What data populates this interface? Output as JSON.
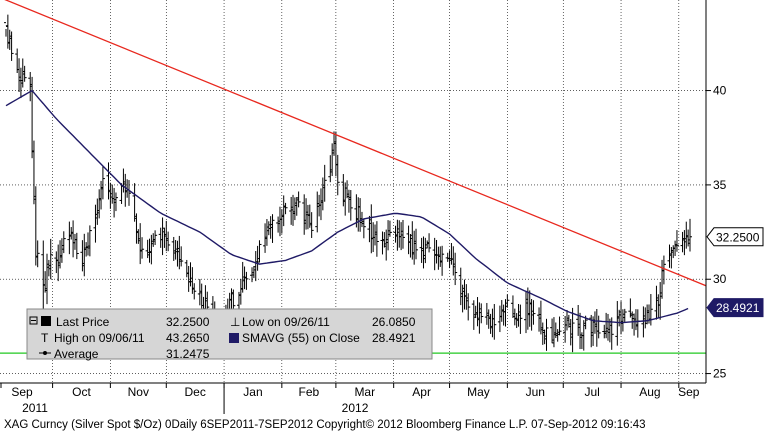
{
  "chart_data": {
    "type": "candlestick",
    "ticker": "XAG Curncy (Silver Spot $/Oz)",
    "period": "Daily 6SEP2011-7SEP2012",
    "copyright": "Copyright© 2012 Bloomberg Finance L.P.",
    "timestamp": "07-Sep-2012 09:16:43",
    "footer_text": "XAG Curncy (Silver Spot  $/Oz) 0Daily 6SEP2011-7SEP2012      Copyright© 2012 Bloomberg Finance L.P.      07-Sep-2012 09:16:43",
    "months": [
      "Sep",
      "Oct",
      "Nov",
      "Dec",
      "Jan",
      "Feb",
      "Mar",
      "Apr",
      "May",
      "Jun",
      "Jul",
      "Aug",
      "Sep"
    ],
    "years": [
      "2011",
      "2012"
    ],
    "yticks": [
      25,
      30,
      35,
      40
    ],
    "ylim": [
      24.5,
      44.8
    ],
    "badges": {
      "last": "32.2500",
      "sma": "28.4921"
    },
    "legend": {
      "last_price_label": "Last Price",
      "last_price_value": "32.2500",
      "high_label": "High on 09/06/11",
      "high_value": "43.2650",
      "average_label": "Average",
      "average_value": "31.2475",
      "low_label": "Low on 09/26/11",
      "low_value": "26.0850",
      "sma_label": "SMAVG (55) on Close",
      "sma_value": "28.4921"
    },
    "close_anchors": [
      [
        "2011-09-06",
        43.0
      ],
      [
        "2011-09-12",
        41.0
      ],
      [
        "2011-09-19",
        40.0
      ],
      [
        "2011-09-22",
        31.5
      ],
      [
        "2011-09-26",
        29.5
      ],
      [
        "2011-09-30",
        31.0
      ],
      [
        "2011-10-04",
        31.0
      ],
      [
        "2011-10-10",
        32.5
      ],
      [
        "2011-10-17",
        31.0
      ],
      [
        "2011-10-24",
        33.0
      ],
      [
        "2011-10-28",
        35.0
      ],
      [
        "2011-11-04",
        34.0
      ],
      [
        "2011-11-09",
        35.0
      ],
      [
        "2011-11-18",
        31.5
      ],
      [
        "2011-11-28",
        32.5
      ],
      [
        "2011-12-06",
        31.5
      ],
      [
        "2011-12-12",
        30.0
      ],
      [
        "2011-12-19",
        29.0
      ],
      [
        "2011-12-29",
        27.5
      ],
      [
        "2012-01-05",
        28.8
      ],
      [
        "2012-01-12",
        30.0
      ],
      [
        "2012-01-20",
        31.5
      ],
      [
        "2012-01-27",
        33.5
      ],
      [
        "2012-02-03",
        33.5
      ],
      [
        "2012-02-10",
        34.0
      ],
      [
        "2012-02-17",
        33.0
      ],
      [
        "2012-02-24",
        35.0
      ],
      [
        "2012-02-29",
        37.0
      ],
      [
        "2012-03-02",
        35.0
      ],
      [
        "2012-03-09",
        34.0
      ],
      [
        "2012-03-16",
        33.0
      ],
      [
        "2012-03-23",
        32.0
      ],
      [
        "2012-03-30",
        32.5
      ],
      [
        "2012-04-06",
        32.0
      ],
      [
        "2012-04-13",
        31.5
      ],
      [
        "2012-04-20",
        31.5
      ],
      [
        "2012-04-27",
        31.0
      ],
      [
        "2012-05-04",
        30.5
      ],
      [
        "2012-05-11",
        28.5
      ],
      [
        "2012-05-18",
        27.8
      ],
      [
        "2012-05-25",
        28.0
      ],
      [
        "2012-06-01",
        28.5
      ],
      [
        "2012-06-06",
        28.0
      ],
      [
        "2012-06-12",
        28.5
      ],
      [
        "2012-06-19",
        27.5
      ],
      [
        "2012-06-27",
        26.8
      ],
      [
        "2012-07-03",
        27.5
      ],
      [
        "2012-07-10",
        27.3
      ],
      [
        "2012-07-17",
        27.5
      ],
      [
        "2012-07-24",
        27.3
      ],
      [
        "2012-07-31",
        27.8
      ],
      [
        "2012-08-07",
        28.0
      ],
      [
        "2012-08-14",
        27.8
      ],
      [
        "2012-08-21",
        29.0
      ],
      [
        "2012-08-24",
        30.5
      ],
      [
        "2012-08-31",
        31.5
      ],
      [
        "2012-09-04",
        32.2
      ],
      [
        "2012-09-07",
        32.25
      ]
    ],
    "sma_anchors": [
      [
        "2011-09-06",
        39.2
      ],
      [
        "2011-09-20",
        40.0
      ],
      [
        "2011-10-03",
        38.5
      ],
      [
        "2011-10-20",
        36.8
      ],
      [
        "2011-11-07",
        35.0
      ],
      [
        "2011-11-28",
        33.5
      ],
      [
        "2011-12-19",
        32.5
      ],
      [
        "2012-01-05",
        31.3
      ],
      [
        "2012-01-20",
        30.8
      ],
      [
        "2012-02-03",
        31.0
      ],
      [
        "2012-02-17",
        31.5
      ],
      [
        "2012-03-02",
        32.5
      ],
      [
        "2012-03-16",
        33.2
      ],
      [
        "2012-04-02",
        33.5
      ],
      [
        "2012-04-16",
        33.3
      ],
      [
        "2012-05-01",
        32.4
      ],
      [
        "2012-05-15",
        31.1
      ],
      [
        "2012-06-01",
        29.8
      ],
      [
        "2012-06-19",
        29.0
      ],
      [
        "2012-07-03",
        28.3
      ],
      [
        "2012-07-17",
        27.8
      ],
      [
        "2012-08-01",
        27.7
      ],
      [
        "2012-08-15",
        27.8
      ],
      [
        "2012-08-31",
        28.2
      ],
      [
        "2012-09-07",
        28.49
      ]
    ],
    "trendline": {
      "from": [
        "2011-09-06",
        44.8
      ],
      "to": [
        "2012-09-07",
        30.0
      ]
    },
    "low_line": 26.085
  }
}
